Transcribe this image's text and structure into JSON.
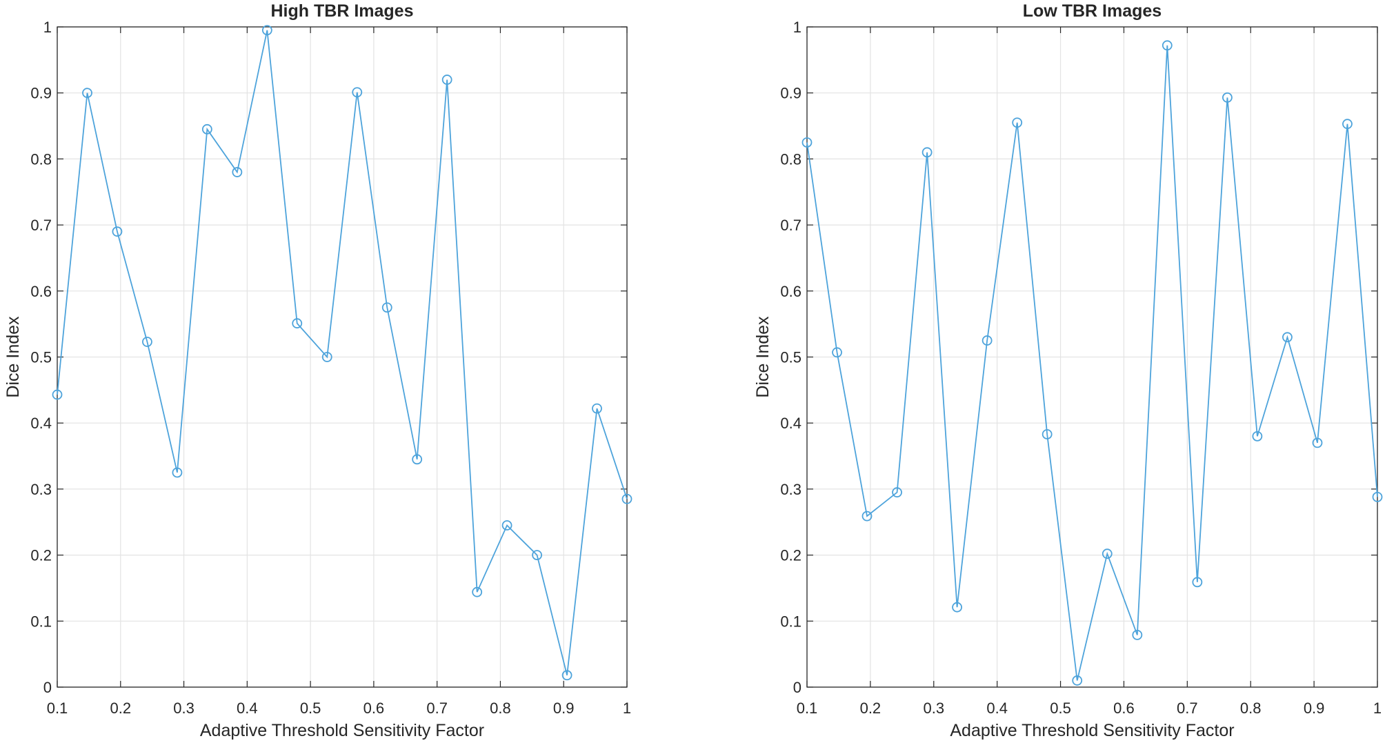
{
  "chart_data": [
    {
      "type": "line",
      "title": "High TBR Images",
      "xlabel": "Adaptive Threshold Sensitivity Factor",
      "ylabel": "Dice Index",
      "xlim": [
        0.1,
        1
      ],
      "ylim": [
        0,
        1
      ],
      "xticks": [
        "0.1",
        "0.2",
        "0.3",
        "0.4",
        "0.5",
        "0.6",
        "0.7",
        "0.8",
        "0.9",
        "1"
      ],
      "yticks": [
        "0",
        "0.1",
        "0.2",
        "0.3",
        "0.4",
        "0.5",
        "0.6",
        "0.7",
        "0.8",
        "0.9",
        "1"
      ],
      "grid": true,
      "marker": "circle",
      "color": "#4DA3DB",
      "series": [
        {
          "x": [
            0.1,
            0.1474,
            0.1947,
            0.2421,
            0.2895,
            0.3368,
            0.3842,
            0.4316,
            0.4789,
            0.5263,
            0.5737,
            0.6211,
            0.6684,
            0.7158,
            0.7632,
            0.8105,
            0.8579,
            0.9053,
            0.9526,
            1.0
          ],
          "values": [
            0.443,
            0.9,
            0.69,
            0.523,
            0.325,
            0.845,
            0.78,
            0.995,
            0.551,
            0.5,
            0.901,
            0.575,
            0.345,
            0.92,
            0.144,
            0.245,
            0.2,
            0.018,
            0.422,
            0.285
          ]
        }
      ]
    },
    {
      "type": "line",
      "title": "Low TBR Images",
      "xlabel": "Adaptive Threshold Sensitivity Factor",
      "ylabel": "Dice Index",
      "xlim": [
        0.1,
        1
      ],
      "ylim": [
        0,
        1
      ],
      "xticks": [
        "0.1",
        "0.2",
        "0.3",
        "0.4",
        "0.5",
        "0.6",
        "0.7",
        "0.8",
        "0.9",
        "1"
      ],
      "yticks": [
        "0",
        "0.1",
        "0.2",
        "0.3",
        "0.4",
        "0.5",
        "0.6",
        "0.7",
        "0.8",
        "0.9",
        "1"
      ],
      "grid": true,
      "marker": "circle",
      "color": "#4DA3DB",
      "series": [
        {
          "x": [
            0.1,
            0.1474,
            0.1947,
            0.2421,
            0.2895,
            0.3368,
            0.3842,
            0.4316,
            0.4789,
            0.5263,
            0.5737,
            0.6211,
            0.6684,
            0.7158,
            0.7632,
            0.8105,
            0.8579,
            0.9053,
            0.9526,
            1.0
          ],
          "values": [
            0.825,
            0.507,
            0.259,
            0.295,
            0.81,
            0.121,
            0.525,
            0.855,
            0.383,
            0.01,
            0.202,
            0.079,
            0.972,
            0.159,
            0.893,
            0.38,
            0.53,
            0.37,
            0.853,
            0.288
          ]
        }
      ]
    }
  ]
}
